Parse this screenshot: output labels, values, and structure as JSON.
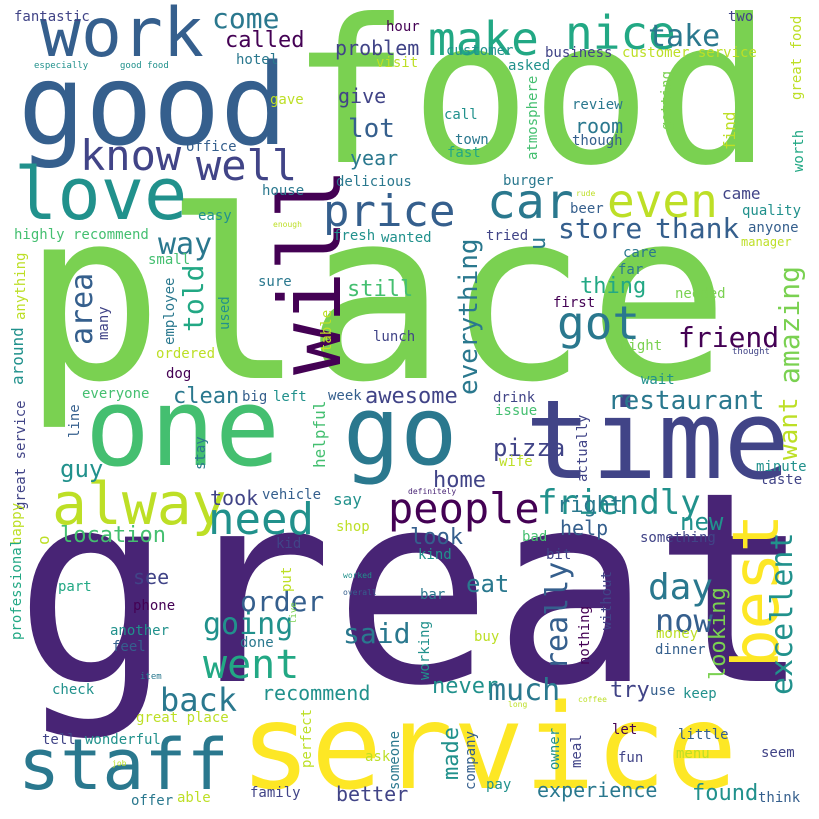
{
  "colors": {
    "background": "#ffffff",
    "palette": [
      "#440154",
      "#482475",
      "#414487",
      "#355f8d",
      "#2a788e",
      "#21918c",
      "#22a884",
      "#44bf70",
      "#7ad151",
      "#bddf26",
      "#fde725"
    ]
  },
  "words": {
    "place": "place",
    "great": "great",
    "food": "food",
    "service": "service",
    "one": "one",
    "good": "good",
    "time": "time",
    "go": "go",
    "work": "work",
    "love": "love",
    "staff": "staff",
    "alway": "alway",
    "will": "will",
    "best": "best",
    "people": "people",
    "price": "price",
    "car": "car",
    "make": "make",
    "nice": "nice",
    "even": "even",
    "know": "know",
    "well": "well",
    "got": "got",
    "need": "need",
    "went": "went",
    "friendly": "friendly",
    "back": "back",
    "really": "really",
    "excellent": "excellent",
    "day": "day",
    "now": "now",
    "restaurant": "restaurant",
    "amazing": "amazing",
    "come": "come",
    "take": "take",
    "store": "store",
    "thank": "thank",
    "friend": "friend",
    "area": "area",
    "told": "told",
    "way": "way",
    "going": "going",
    "order": "order",
    "said": "said",
    "much": "much",
    "everything": "everything",
    "pizza": "pizza",
    "guy": "guy",
    "new": "new",
    "right": "right",
    "called": "called",
    "problem": "problem",
    "give": "give",
    "lot": "lot",
    "year": "year",
    "thing": "thing",
    "still": "still",
    "clean": "clean",
    "awesome": "awesome",
    "took": "took",
    "help": "help",
    "location": "location",
    "look": "look",
    "home": "home",
    "eat": "eat",
    "looking": "looking",
    "never": "never",
    "recommend": "recommend",
    "made": "made",
    "try": "try",
    "experience": "experience",
    "better": "better",
    "found": "found",
    "want": "want",
    "see": "see",
    "hour": "hour",
    "two": "two",
    "customer": "customer",
    "business": "business",
    "customer_service": "customer service",
    "great_food": "great food",
    "visit": "visit",
    "asked": "asked",
    "fantastic": "fantastic",
    "especially": "especially",
    "good_food": "good food",
    "hotel": "hotel",
    "gave": "gave",
    "call": "call",
    "town": "town",
    "fast": "fast",
    "atmosphere": "atmosphere",
    "review": "review",
    "though": "though",
    "room": "room",
    "getting": "getting",
    "find": "find",
    "worth": "worth",
    "office": "office",
    "delicious": "delicious",
    "burger": "burger",
    "came": "came",
    "quality": "quality",
    "house": "house",
    "beer": "beer",
    "rude": "rude",
    "easy": "easy",
    "enough": "enough",
    "fresh": "fresh",
    "wanted": "wanted",
    "tried": "tried",
    "anyone": "anyone",
    "manager": "manager",
    "highly_recommend": "highly recommend",
    "small": "small",
    "care": "care",
    "far": "far",
    "sure": "sure",
    "first": "first",
    "needed": "needed",
    "anything": "anything",
    "many": "many",
    "employee": "employee",
    "used": "used",
    "table": "table",
    "lunch": "lunch",
    "night": "night",
    "thought": "thought",
    "ordered": "ordered",
    "dog": "dog",
    "around": "around",
    "everyone": "everyone",
    "big": "big",
    "left": "left",
    "helpful": "helpful",
    "week": "week",
    "drink": "drink",
    "wait": "wait",
    "issue": "issue",
    "line": "line",
    "great_service": "great service",
    "stay": "stay",
    "vehicle": "vehicle",
    "wife": "wife",
    "actually": "actually",
    "minute": "minute",
    "taste": "taste",
    "happy": "happy",
    "definitely": "definitely",
    "professional": "professional",
    "say": "say",
    "shop": "shop",
    "kid": "kid",
    "kind": "kind",
    "something": "something",
    "bad": "bad",
    "bit": "bit",
    "put": "put",
    "worked": "worked",
    "live": "live",
    "overall": "overall",
    "part": "part",
    "bar": "bar",
    "without": "without",
    "nothing": "nothing",
    "phone": "phone",
    "another": "another",
    "done": "done",
    "working": "working",
    "buy": "buy",
    "money": "money",
    "feel": "feel",
    "dinner": "dinner",
    "item": "item",
    "check": "check",
    "great_place": "great place",
    "use": "use",
    "keep": "keep",
    "long": "long",
    "coffee": "coffee",
    "tell": "tell",
    "wonderful": "wonderful",
    "perfect": "perfect",
    "ask": "ask",
    "someone": "someone",
    "company": "company",
    "owner": "owner",
    "meal": "meal",
    "let": "let",
    "fun": "fun",
    "little": "little",
    "menu": "menu",
    "seem": "seem",
    "job": "job",
    "offer": "offer",
    "able": "able",
    "family": "family",
    "pay": "pay",
    "think": "think"
  }
}
